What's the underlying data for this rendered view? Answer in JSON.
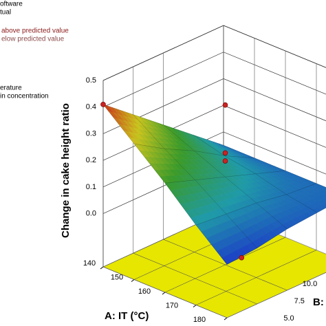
{
  "chart_data": {
    "type": "surface3d",
    "legend_notes": [
      "oftware",
      "tual",
      "above predicted value",
      "elow predicted value",
      "erature",
      "in concentration"
    ],
    "xlabel": "A: IT (°C)",
    "ylabel": "B:",
    "zlabel": "Change in cake height ratio",
    "xlim": [
      140,
      180
    ],
    "xticks": [
      140,
      150,
      160,
      170,
      180
    ],
    "ylim": [
      5,
      15
    ],
    "yticks": [
      {
        "value": 5,
        "label": "5.0"
      },
      7.5,
      {
        "value": 10,
        "label": "10.0"
      }
    ],
    "zlim": [
      -0.2,
      0.5
    ],
    "zticks": [
      {
        "value": 0,
        "label": "0.0"
      },
      0.1,
      0.2,
      0.3,
      0.4,
      0.5
    ],
    "floor_color": "#e6e600",
    "colormap": [
      "#1c3cc8",
      "#1f9aa8",
      "#3a9a2a",
      "#c9c31e",
      "#c8321a"
    ],
    "surface": {
      "x": [
        140,
        150,
        160,
        170,
        180
      ],
      "y": [
        5,
        7.5,
        10,
        12.5,
        15
      ],
      "z": [
        [
          0.41,
          0.32,
          0.23,
          0.14,
          0.05
        ],
        [
          0.31,
          0.24,
          0.18,
          0.11,
          0.05
        ],
        [
          0.21,
          0.17,
          0.13,
          0.09,
          0.05
        ],
        [
          0.1,
          0.09,
          0.08,
          0.06,
          0.05
        ],
        [
          0.0,
          0.01,
          0.03,
          0.04,
          0.05
        ]
      ]
    },
    "points": {
      "color": "#cc2222",
      "x": [
        140,
        160,
        160,
        160,
        175
      ],
      "y": [
        5,
        10,
        10,
        10,
        7.5
      ],
      "z": [
        0.41,
        0.4,
        0.22,
        0.19,
        -0.05
      ]
    }
  }
}
